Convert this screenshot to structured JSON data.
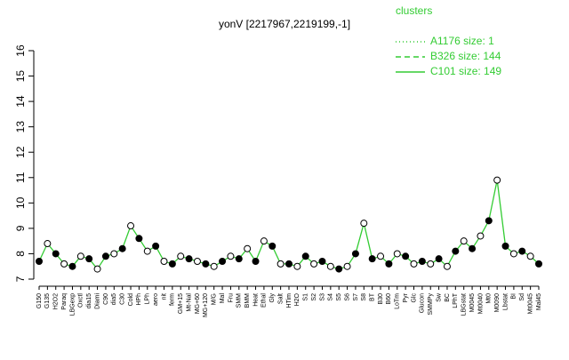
{
  "chart_data": {
    "type": "line",
    "title": "yonV [2217967,2219199,-1]",
    "categories": [
      "G150",
      "G135",
      "H2O2",
      "Paraq",
      "LBGexp",
      "Oxctl",
      "dia15",
      "Diami",
      "C90",
      "dia5",
      "C30",
      "Cold",
      "HPh",
      "LPh",
      "aero",
      "nit",
      "ferm",
      "GM+15",
      "Mt-Nal",
      "MG+60",
      "MG+120",
      "M/G",
      "Mal",
      "Fru",
      "SMM",
      "BMM",
      "Heat",
      "Ethal",
      "Gly",
      "Salt",
      "HTim",
      "H2O",
      "S1",
      "S2",
      "S3",
      "S4",
      "S5",
      "S6",
      "S7",
      "S8",
      "BT",
      "B30",
      "B60",
      "LoTm",
      "Pyr",
      "Glc",
      "Glucon",
      "SMMPy",
      "Sw",
      "BC",
      "LPhT",
      "LBGstat",
      "M0045",
      "Mt0040",
      "Mt0",
      "M0090",
      "Lbstat",
      "BI",
      "Sd",
      "Mt0045",
      "Mal45"
    ],
    "series": [
      {
        "name": "C101 size: 149",
        "color": "#33cc33",
        "values": [
          7.7,
          8.4,
          8.0,
          7.6,
          7.5,
          7.9,
          7.8,
          7.4,
          7.9,
          8.0,
          8.2,
          9.1,
          8.6,
          8.1,
          8.3,
          7.7,
          7.6,
          7.9,
          7.8,
          7.7,
          7.6,
          7.5,
          7.7,
          7.9,
          7.8,
          8.2,
          7.7,
          8.5,
          8.3,
          7.6,
          7.6,
          7.5,
          7.9,
          7.6,
          7.7,
          7.5,
          7.4,
          7.5,
          8.0,
          9.2,
          7.8,
          7.9,
          7.6,
          8.0,
          7.9,
          7.6,
          7.7,
          7.6,
          7.8,
          7.5,
          8.1,
          8.5,
          8.2,
          8.7,
          9.3,
          10.9,
          8.3,
          8.0,
          8.1,
          7.9,
          7.6
        ]
      }
    ],
    "legend": {
      "title": "clusters",
      "entries": [
        {
          "label": "A1176 size: 1",
          "dash": "1,3"
        },
        {
          "label": "B326 size: 144",
          "dash": "6,4"
        },
        {
          "label": "C101 size: 149",
          "dash": "none"
        }
      ]
    },
    "ylim": [
      7,
      16
    ],
    "yticks": [
      7,
      8,
      9,
      10,
      11,
      12,
      13,
      14,
      15,
      16
    ]
  }
}
